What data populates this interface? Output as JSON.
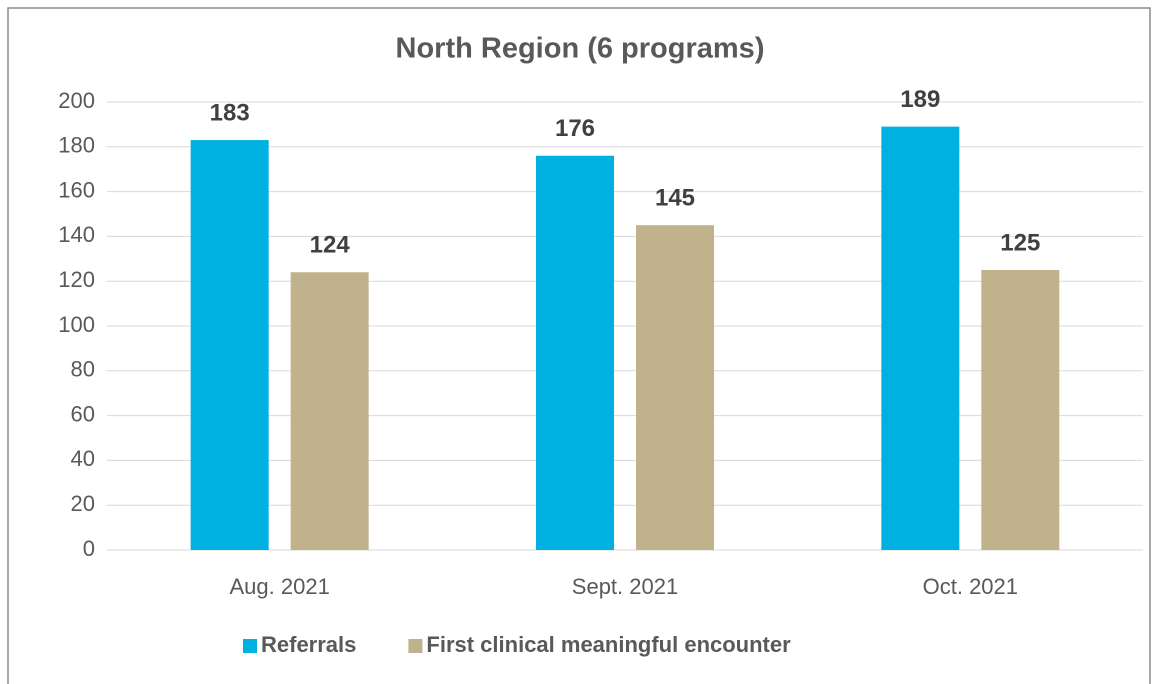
{
  "chart_data": {
    "type": "bar",
    "title": "North Region (6 programs)",
    "categories": [
      "Aug. 2021",
      "Sept. 2021",
      "Oct. 2021"
    ],
    "series": [
      {
        "name": "Referrals",
        "color": "#00b0e0",
        "values": [
          183,
          176,
          189
        ]
      },
      {
        "name": "First clinical meaningful encounter",
        "color": "#c0b28c",
        "values": [
          124,
          145,
          125
        ]
      }
    ],
    "ylim": [
      0,
      200
    ],
    "yticks": [
      0,
      20,
      40,
      60,
      80,
      100,
      120,
      140,
      160,
      180,
      200
    ],
    "grid": true,
    "legend": "bottom"
  }
}
